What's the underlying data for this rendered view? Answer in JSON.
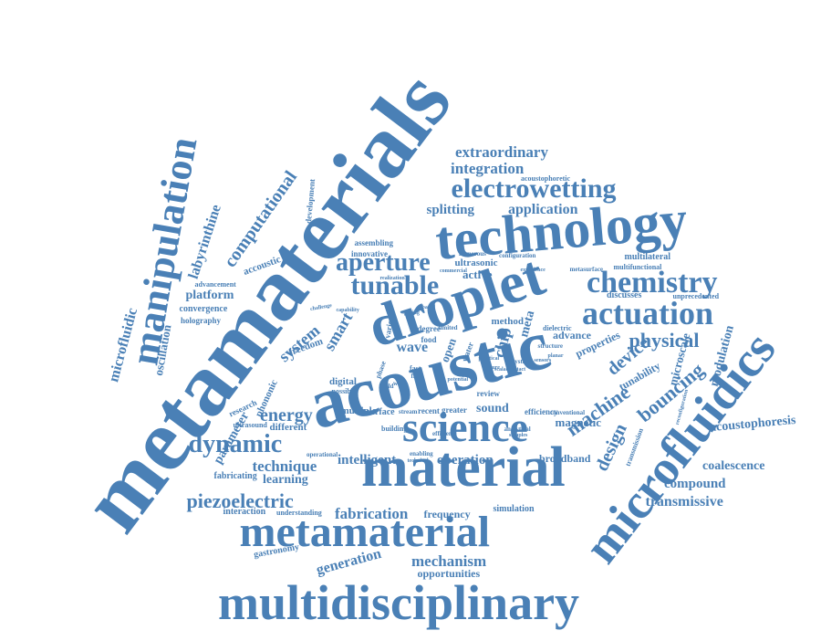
{
  "cloud": {
    "color": "#4a80b6",
    "words": [
      {
        "id": "metamaterials",
        "text": "metamaterials"
      },
      {
        "id": "acoustic",
        "text": "acoustic"
      },
      {
        "id": "droplet",
        "text": "droplet"
      },
      {
        "id": "technology",
        "text": "technology"
      },
      {
        "id": "material",
        "text": "material"
      },
      {
        "id": "science",
        "text": "science"
      },
      {
        "id": "multidisciplinary",
        "text": "multidisciplinary"
      },
      {
        "id": "metamaterial",
        "text": "metamaterial"
      },
      {
        "id": "microfluidics",
        "text": "microfluidics"
      },
      {
        "id": "manipulation",
        "text": "manipulation"
      },
      {
        "id": "chemistry",
        "text": "chemistry"
      },
      {
        "id": "actuation",
        "text": "actuation"
      },
      {
        "id": "electrowetting",
        "text": "electrowetting"
      },
      {
        "id": "tunable",
        "text": "tunable"
      },
      {
        "id": "aperture",
        "text": "aperture"
      },
      {
        "id": "dynamic",
        "text": "dynamic"
      },
      {
        "id": "piezoelectric",
        "text": "piezoelectric"
      },
      {
        "id": "physical",
        "text": "physical"
      },
      {
        "id": "machine",
        "text": "machine"
      },
      {
        "id": "energy",
        "text": "energy"
      },
      {
        "id": "computational",
        "text": "computational"
      },
      {
        "id": "extraordinary",
        "text": "extraordinary"
      },
      {
        "id": "integration",
        "text": "integration"
      },
      {
        "id": "splitting",
        "text": "splitting"
      },
      {
        "id": "application",
        "text": "application"
      },
      {
        "id": "technique",
        "text": "technique"
      },
      {
        "id": "fabrication",
        "text": "fabrication"
      },
      {
        "id": "mechanism",
        "text": "mechanism"
      },
      {
        "id": "generation",
        "text": "generation"
      },
      {
        "id": "intelligent",
        "text": "intelligent"
      },
      {
        "id": "operation",
        "text": "operation"
      },
      {
        "id": "learning",
        "text": "learning"
      },
      {
        "id": "transmissive",
        "text": "transmissive"
      },
      {
        "id": "compound",
        "text": "compound"
      },
      {
        "id": "coalescence",
        "text": "coalescence"
      },
      {
        "id": "acoustophoresis",
        "text": "acoustophoresis"
      },
      {
        "id": "bouncing",
        "text": "bouncing"
      },
      {
        "id": "design",
        "text": "design"
      },
      {
        "id": "device",
        "text": "device"
      },
      {
        "id": "smart",
        "text": "smart"
      },
      {
        "id": "system",
        "text": "system"
      },
      {
        "id": "platform",
        "text": "platform"
      },
      {
        "id": "labyrinthine",
        "text": "labyrinthine"
      },
      {
        "id": "microfluidic",
        "text": "microfluidic"
      },
      {
        "id": "oscillation",
        "text": "oscillation"
      },
      {
        "id": "parameter",
        "text": "parameter"
      },
      {
        "id": "magnetic",
        "text": "magnetic"
      },
      {
        "id": "wave",
        "text": "wave"
      },
      {
        "id": "sound",
        "text": "sound"
      },
      {
        "id": "frequency",
        "text": "frequency"
      },
      {
        "id": "opportunities",
        "text": "opportunities"
      },
      {
        "id": "broadband",
        "text": "broadband"
      },
      {
        "id": "modulation",
        "text": "modulation"
      },
      {
        "id": "microscale",
        "text": "microscale"
      },
      {
        "id": "tunability",
        "text": "tunability"
      },
      {
        "id": "properties",
        "text": "properties"
      },
      {
        "id": "advance",
        "text": "advance"
      },
      {
        "id": "active",
        "text": "active"
      },
      {
        "id": "ultrasonic",
        "text": "ultrasonic"
      },
      {
        "id": "accoustic",
        "text": "accoustic"
      },
      {
        "id": "convergence",
        "text": "convergence"
      },
      {
        "id": "holography",
        "text": "holography"
      },
      {
        "id": "advancement",
        "text": "advancement"
      },
      {
        "id": "discusses",
        "text": "discusses"
      },
      {
        "id": "unprecedented",
        "text": "unprecedented"
      },
      {
        "id": "multilateral",
        "text": "multilateral"
      },
      {
        "id": "multifunctional",
        "text": "multifunctional"
      },
      {
        "id": "metasurface",
        "text": "metasurface"
      },
      {
        "id": "acoustophoretic",
        "text": "acoustophoretic"
      },
      {
        "id": "development",
        "text": "development"
      },
      {
        "id": "assembling",
        "text": "assembling"
      },
      {
        "id": "innovative",
        "text": "innovative"
      },
      {
        "id": "numerous",
        "text": "numerous"
      },
      {
        "id": "configuration",
        "text": "configuration"
      },
      {
        "id": "commercial",
        "text": "commercial"
      },
      {
        "id": "method",
        "text": "method"
      },
      {
        "id": "chip",
        "text": "chip"
      },
      {
        "id": "meta",
        "text": "meta"
      },
      {
        "id": "open",
        "text": "open"
      },
      {
        "id": "dielectric",
        "text": "dielectric"
      },
      {
        "id": "structure",
        "text": "structure"
      },
      {
        "id": "crystal",
        "text": "crystal"
      },
      {
        "id": "contact",
        "text": "contact"
      },
      {
        "id": "food",
        "text": "food"
      },
      {
        "id": "degree",
        "text": "degree"
      },
      {
        "id": "limited",
        "text": "limited"
      },
      {
        "id": "freedom",
        "text": "freedom"
      },
      {
        "id": "digital",
        "text": "digital"
      },
      {
        "id": "possible",
        "text": "possible"
      },
      {
        "id": "different",
        "text": "different"
      },
      {
        "id": "ultrasound",
        "text": "ultrasound"
      },
      {
        "id": "research",
        "text": "research"
      },
      {
        "id": "phononic",
        "text": "phononic"
      },
      {
        "id": "multiple",
        "text": "multiple"
      },
      {
        "id": "surface",
        "text": "surface"
      },
      {
        "id": "stream",
        "text": "stream"
      },
      {
        "id": "recent",
        "text": "recent"
      },
      {
        "id": "greater",
        "text": "greater"
      },
      {
        "id": "efficiency",
        "text": "efficiency"
      },
      {
        "id": "conventional",
        "text": "conventional"
      },
      {
        "id": "review",
        "text": "review"
      },
      {
        "id": "building",
        "text": "building"
      },
      {
        "id": "efficient",
        "text": "efficient"
      },
      {
        "id": "analytical",
        "text": "analytical"
      },
      {
        "id": "samples",
        "text": "samples"
      },
      {
        "id": "enabling",
        "text": "enabling"
      },
      {
        "id": "technical",
        "text": "technical"
      },
      {
        "id": "operational",
        "text": "operational"
      },
      {
        "id": "fabricating",
        "text": "fabricating"
      },
      {
        "id": "interaction",
        "text": "interaction"
      },
      {
        "id": "understanding",
        "text": "understanding"
      },
      {
        "id": "gastronomy",
        "text": "gastronomy"
      },
      {
        "id": "simulation",
        "text": "simulation"
      },
      {
        "id": "transmission",
        "text": "transmission"
      },
      {
        "id": "reconfiguration",
        "text": "reconfiguration"
      },
      {
        "id": "water",
        "text": "water"
      },
      {
        "id": "various",
        "text": "various"
      },
      {
        "id": "fast",
        "text": "fast"
      },
      {
        "id": "flow",
        "text": "flow"
      },
      {
        "id": "work",
        "text": "work"
      },
      {
        "id": "build",
        "text": "build"
      },
      {
        "id": "phase",
        "text": "phase"
      },
      {
        "id": "realization",
        "text": "realization"
      },
      {
        "id": "challenge",
        "text": "challenge"
      },
      {
        "id": "capability",
        "text": "capability"
      },
      {
        "id": "spacing",
        "text": "spacing"
      },
      {
        "id": "scalable",
        "text": "scalable"
      },
      {
        "id": "practical",
        "text": "practical"
      },
      {
        "id": "experience",
        "text": "experience"
      },
      {
        "id": "future",
        "text": "future"
      },
      {
        "id": "sensors",
        "text": "sensors"
      },
      {
        "id": "planar",
        "text": "planar"
      },
      {
        "id": "potential",
        "text": "potential"
      },
      {
        "id": "based",
        "text": "based"
      }
    ]
  }
}
